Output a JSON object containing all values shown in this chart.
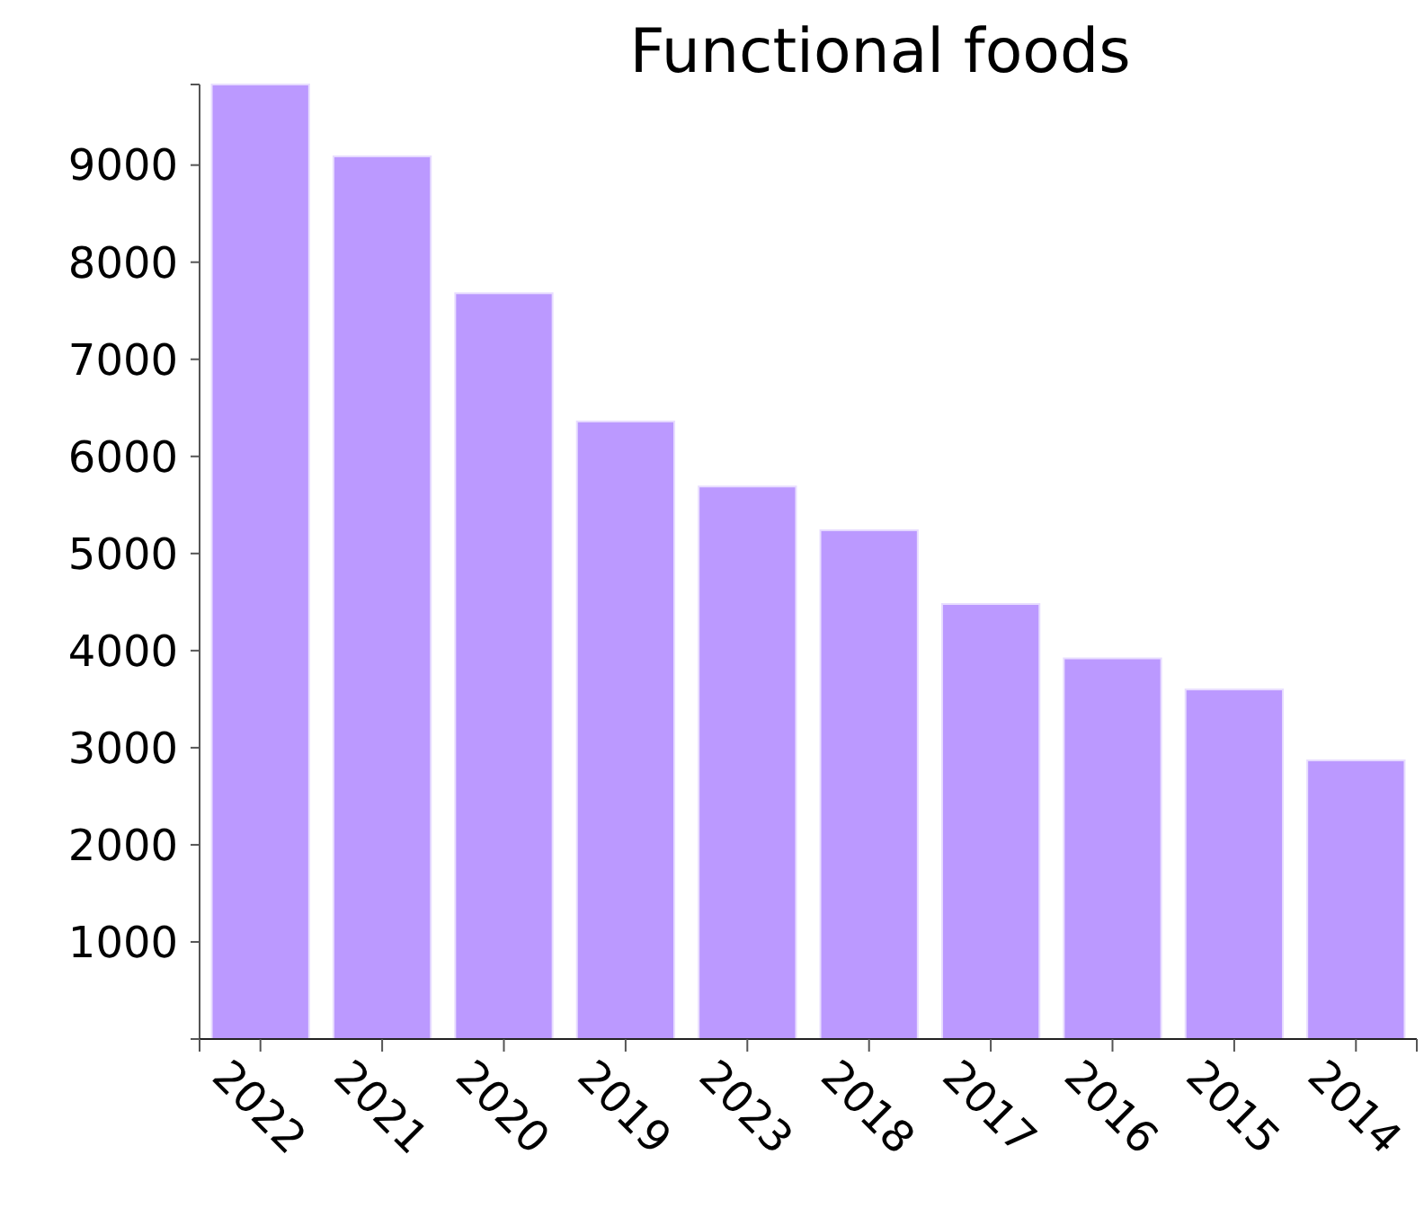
{
  "chart_data": {
    "type": "bar",
    "title": "Functional foods",
    "categories": [
      "2022",
      "2021",
      "2020",
      "2019",
      "2023",
      "2018",
      "2017",
      "2016",
      "2015",
      "2014"
    ],
    "values": [
      9830,
      9090,
      7680,
      6360,
      5690,
      5240,
      4480,
      3920,
      3600,
      2870
    ],
    "color": "#bb99ff",
    "ylim": [
      0,
      9830
    ],
    "yticks": [
      {
        "value": 0,
        "label": null
      },
      1000,
      2000,
      3000,
      4000,
      5000,
      6000,
      7000,
      8000,
      9000,
      {
        "value": 9830,
        "label": null
      }
    ],
    "grid": false
  }
}
